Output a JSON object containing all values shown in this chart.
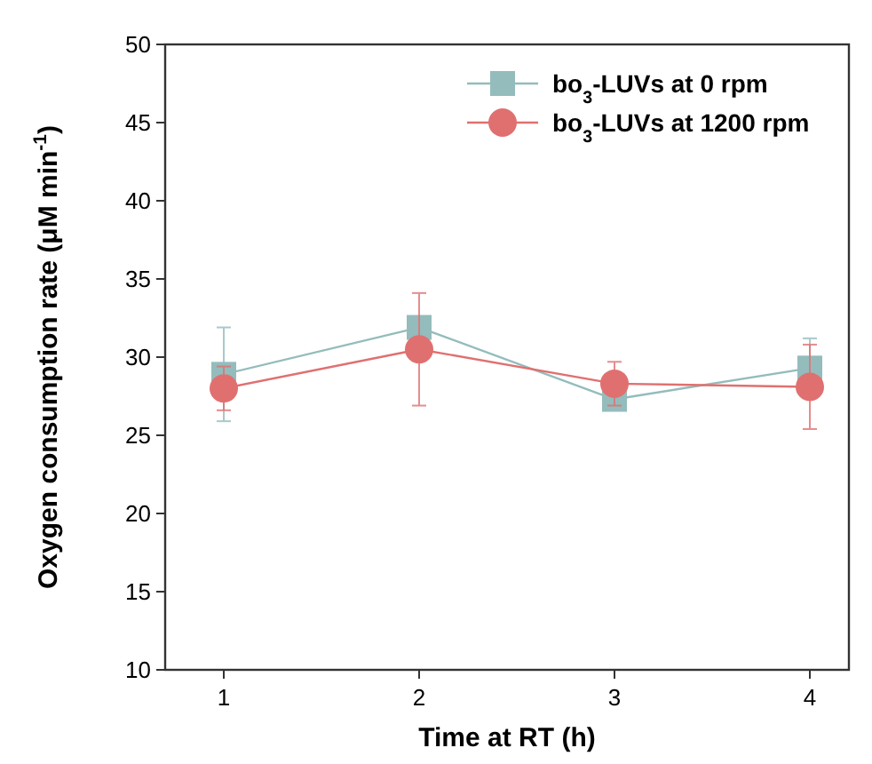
{
  "chart_data": {
    "type": "line",
    "xlabel": "Time at RT (h)",
    "ylabel": "Oxygen consumption rate (μM min$^{-1}$)",
    "x": [
      1,
      2,
      3,
      4
    ],
    "xlim": [
      0.7,
      4.2
    ],
    "xticks": [
      1,
      2,
      3,
      4
    ],
    "ylim": [
      10,
      50
    ],
    "yticks": [
      10,
      15,
      20,
      25,
      30,
      35,
      40,
      45,
      50
    ],
    "grid": false,
    "legend": "top right",
    "line_style": "solid",
    "series": [
      {
        "name": "bo$_{3}$-LUVs at 0 rpm",
        "color": "#94bcbc",
        "marker": "square",
        "values": [
          28.9,
          31.9,
          27.3,
          29.3
        ],
        "errors": [
          3.0,
          null,
          null,
          1.9
        ]
      },
      {
        "name": "bo$_{3}$-LUVs at 1200 rpm",
        "color": "#e07070",
        "marker": "circle",
        "values": [
          28.0,
          30.5,
          28.3,
          28.1
        ],
        "errors": [
          1.4,
          3.6,
          1.4,
          2.7
        ]
      }
    ]
  }
}
